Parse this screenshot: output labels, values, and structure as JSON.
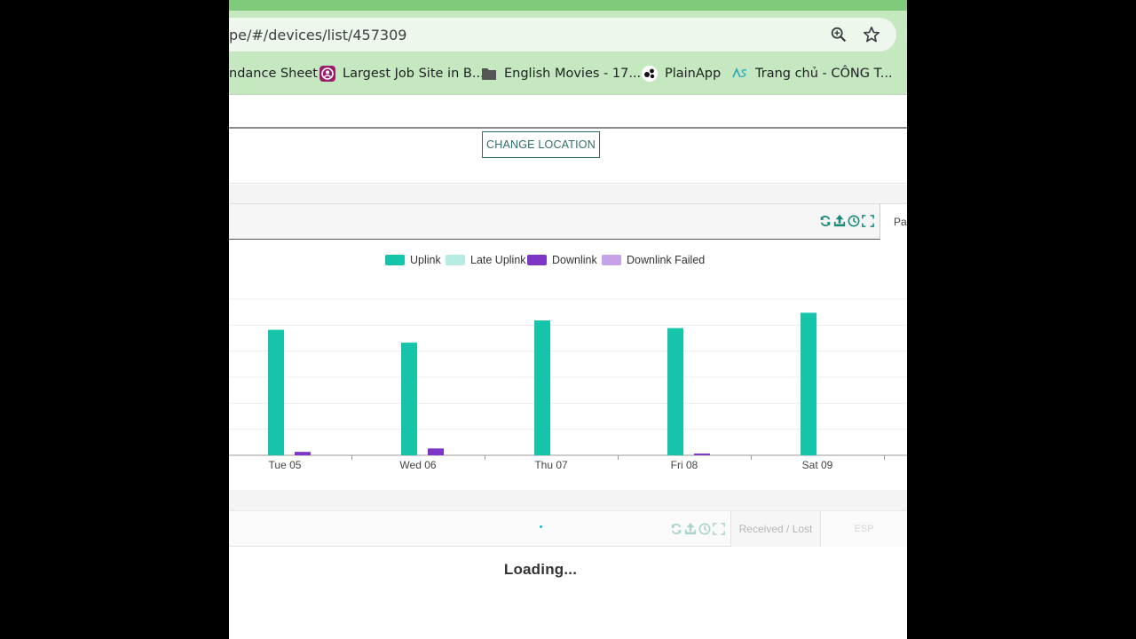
{
  "browser": {
    "url": "pe/#/devices/list/457309",
    "zoom_icon": "zoom-icon",
    "star_icon": "bookmark-star-icon",
    "bookmarks": [
      {
        "label": "ndance Sheet",
        "icon": "none"
      },
      {
        "label": "Largest Job Site in B...",
        "icon": "job-site-icon"
      },
      {
        "label": "English Movies - 17...",
        "icon": "folder-icon"
      },
      {
        "label": "PlainApp",
        "icon": "plainapp-icon"
      },
      {
        "label": "Trang chủ - CÔNG T...",
        "icon": "ase-icon"
      }
    ]
  },
  "location": {
    "change_button": "CHANGE LOCATION"
  },
  "panel1": {
    "tab_label": "Pa",
    "tools": [
      "refresh-icon",
      "export-icon",
      "history-icon",
      "fullscreen-icon"
    ]
  },
  "chart_data": {
    "type": "bar",
    "categories": [
      "Tue 05",
      "Wed 06",
      "Thu 07",
      "Fri 08",
      "Sat 09"
    ],
    "series": [
      {
        "name": "Uplink",
        "color": "#16c4aa",
        "values": [
          147,
          132,
          158,
          149,
          167
        ]
      },
      {
        "name": "Late Uplink",
        "color": "#b6ece2",
        "values": [
          0,
          0,
          0,
          0,
          0
        ]
      },
      {
        "name": "Downlink",
        "color": "#7c35c4",
        "values": [
          4,
          8,
          0,
          2,
          0
        ]
      },
      {
        "name": "Downlink Failed",
        "color": "#c5a1e8",
        "values": [
          0,
          0,
          0,
          0,
          0
        ]
      }
    ],
    "ylim": [
      0,
      183
    ],
    "grid": true,
    "legend": "top-center"
  },
  "panel2": {
    "tab_received": "Received / Lost",
    "tab_esp": "ESP",
    "tools": [
      "refresh-icon",
      "export-icon",
      "history-icon",
      "fullscreen-icon"
    ],
    "loading_text": "Loading..."
  }
}
